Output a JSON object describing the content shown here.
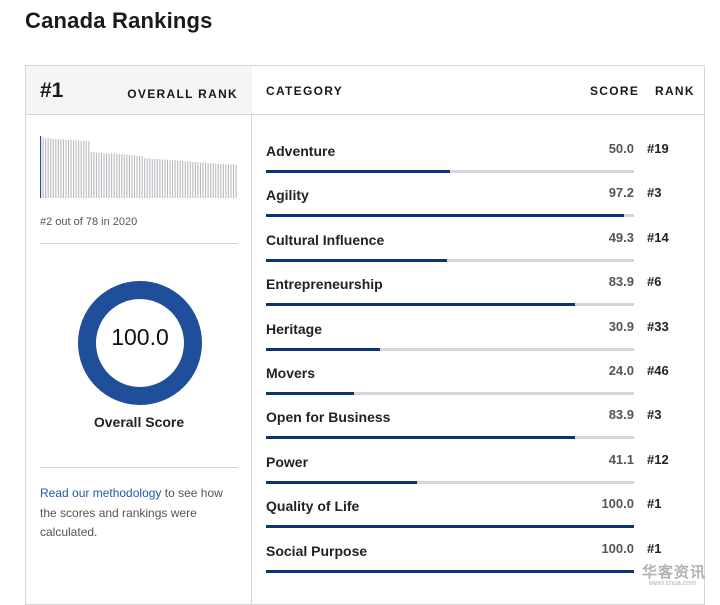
{
  "page": {
    "title": "Canada Rankings"
  },
  "overall": {
    "rank": "#1",
    "rank_label": "OVERALL RANK",
    "history_text": "#2 out of 78 in 2020",
    "score": "100.0",
    "score_value": 100.0,
    "score_label": "Overall Score",
    "methodology_link": "Read our methodology",
    "methodology_text": " to see how the scores and rankings were calculated."
  },
  "sparkline_values": [
    100,
    97,
    96,
    96,
    96,
    95,
    95,
    95,
    95,
    95,
    94,
    94,
    94,
    93,
    93,
    93,
    92,
    92,
    92,
    92,
    74,
    74,
    73,
    73,
    73,
    72,
    72,
    72,
    72,
    72,
    71,
    71,
    71,
    70,
    70,
    70,
    69,
    69,
    68,
    68,
    68,
    64,
    64,
    64,
    63,
    63,
    63,
    63,
    62,
    62,
    62,
    61,
    61,
    61,
    60,
    60,
    60,
    59,
    59,
    59,
    58,
    58,
    58,
    57,
    57,
    57,
    56,
    56,
    56,
    55,
    55,
    55,
    55,
    54,
    54,
    54,
    54,
    53
  ],
  "table": {
    "headers": {
      "category": "CATEGORY",
      "score": "SCORE",
      "rank": "RANK"
    },
    "rows": [
      {
        "name": "Adventure",
        "score": "50.0",
        "value": 50.0,
        "rank": "#19"
      },
      {
        "name": "Agility",
        "score": "97.2",
        "value": 97.2,
        "rank": "#3"
      },
      {
        "name": "Cultural Influence",
        "score": "49.3",
        "value": 49.3,
        "rank": "#14"
      },
      {
        "name": "Entrepreneurship",
        "score": "83.9",
        "value": 83.9,
        "rank": "#6"
      },
      {
        "name": "Heritage",
        "score": "30.9",
        "value": 30.9,
        "rank": "#33"
      },
      {
        "name": "Movers",
        "score": "24.0",
        "value": 24.0,
        "rank": "#46"
      },
      {
        "name": "Open for Business",
        "score": "83.9",
        "value": 83.9,
        "rank": "#3"
      },
      {
        "name": "Power",
        "score": "41.1",
        "value": 41.1,
        "rank": "#12"
      },
      {
        "name": "Quality of Life",
        "score": "100.0",
        "value": 100.0,
        "rank": "#1"
      },
      {
        "name": "Social Purpose",
        "score": "100.0",
        "value": 100.0,
        "rank": "#1"
      }
    ]
  },
  "colors": {
    "accent": "#0f3272",
    "donut": "#1f4e9a",
    "track": "#d3d6da",
    "link": "#1f5ba8"
  },
  "watermark": {
    "text": "华客资讯",
    "sub": "www.cnua.com"
  }
}
